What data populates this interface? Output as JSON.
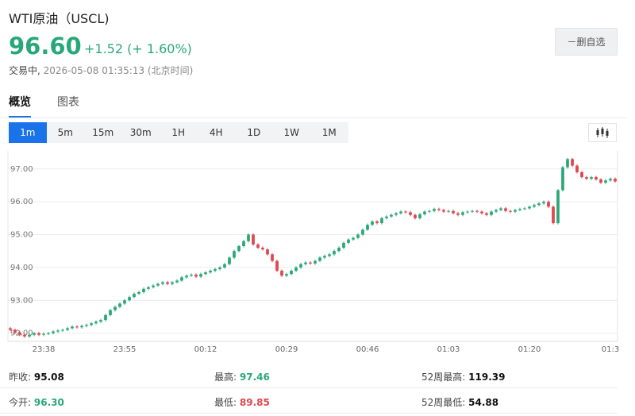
{
  "header": {
    "title": "WTI原油（USCL)",
    "price": "96.60",
    "change": "+1.52 (+ 1.60%)",
    "status": "交易中,",
    "timestamp": "2026-05-08 01:35:13 (北京时间)",
    "remove_watchlist": "－删自选"
  },
  "tabs": [
    "概览",
    "图表"
  ],
  "periods": [
    "1m",
    "5m",
    "15m",
    "30m",
    "1H",
    "4H",
    "1D",
    "1W",
    "1M"
  ],
  "active_period": "1m",
  "colors": {
    "up": "#28a878",
    "down": "#e0454e",
    "accent": "#1a73e8"
  },
  "icons": {
    "chart_type": "candlestick-icon"
  },
  "chart_data": {
    "type": "candlestick",
    "y_ticks": [
      "92.00",
      "93.00",
      "94.00",
      "95.00",
      "96.00",
      "97.00"
    ],
    "y_tick_values": [
      92,
      93,
      94,
      95,
      96,
      97
    ],
    "ylim": [
      91.75,
      97.55
    ],
    "x_ticks": [
      "23:38",
      "23:55",
      "00:12",
      "00:29",
      "00:46",
      "01:03",
      "01:20",
      "01:3"
    ],
    "x_tick_index": [
      7,
      24,
      41,
      58,
      75,
      92,
      109,
      126
    ],
    "close": [
      92.1,
      92.02,
      91.95,
      91.9,
      91.95,
      92.0,
      91.95,
      91.98,
      92.0,
      92.05,
      92.08,
      92.1,
      92.15,
      92.2,
      92.18,
      92.22,
      92.25,
      92.3,
      92.35,
      92.4,
      92.55,
      92.7,
      92.8,
      92.9,
      93.0,
      93.1,
      93.2,
      93.25,
      93.35,
      93.4,
      93.45,
      93.5,
      93.55,
      93.5,
      93.55,
      93.6,
      93.7,
      93.75,
      93.78,
      93.72,
      93.8,
      93.85,
      93.9,
      93.95,
      94.0,
      94.1,
      94.3,
      94.5,
      94.65,
      94.8,
      95.0,
      94.7,
      94.6,
      94.55,
      94.4,
      94.2,
      93.9,
      93.75,
      93.8,
      93.9,
      94.0,
      94.1,
      94.15,
      94.12,
      94.2,
      94.3,
      94.35,
      94.4,
      94.5,
      94.6,
      94.75,
      94.85,
      94.9,
      95.0,
      95.15,
      95.3,
      95.4,
      95.35,
      95.5,
      95.55,
      95.6,
      95.65,
      95.7,
      95.68,
      95.6,
      95.5,
      95.62,
      95.7,
      95.72,
      95.78,
      95.75,
      95.7,
      95.72,
      95.65,
      95.6,
      95.68,
      95.7,
      95.72,
      95.7,
      95.65,
      95.6,
      95.7,
      95.75,
      95.8,
      95.72,
      95.7,
      95.75,
      95.78,
      95.8,
      95.85,
      95.9,
      95.95,
      96.0,
      95.85,
      95.35,
      96.35,
      97.05,
      97.3,
      97.1,
      96.9,
      96.75,
      96.7,
      96.75,
      96.68,
      96.58,
      96.65,
      96.7,
      96.62
    ]
  },
  "stats": {
    "prev_close_label": "昨收:",
    "prev_close": "95.08",
    "high_label": "最高:",
    "high": "97.46",
    "high_52w_label": "52周最高:",
    "high_52w": "119.39",
    "open_label": "今开:",
    "open": "96.30",
    "low_label": "最低:",
    "low": "89.85",
    "low_52w_label": "52周最低:",
    "low_52w": "54.88"
  }
}
